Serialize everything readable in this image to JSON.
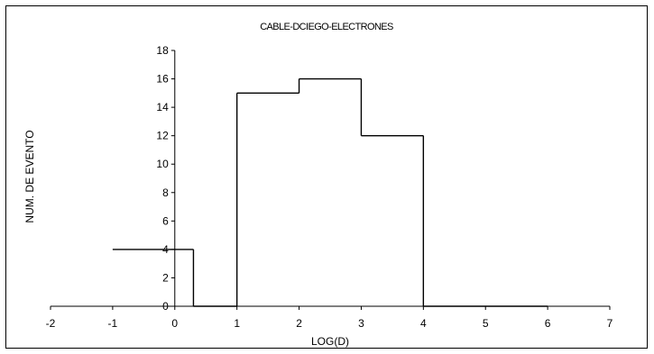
{
  "chart_data": {
    "type": "line",
    "title": "CABLE-DCIEGO-ELECTRONES",
    "xlabel": "LOG(D)",
    "ylabel": "NUM. DE EVENTO",
    "xlim": [
      -2,
      7
    ],
    "ylim": [
      0,
      18
    ],
    "x_ticks": [
      -2,
      -1,
      0,
      1,
      2,
      3,
      4,
      5,
      6,
      7
    ],
    "y_ticks": [
      0,
      2,
      4,
      6,
      8,
      10,
      12,
      14,
      16,
      18
    ],
    "grid": false,
    "legend": "none",
    "series": [
      {
        "x": [
          -1,
          0.3,
          0.3,
          1,
          1,
          2,
          2,
          3,
          3,
          4,
          4,
          6
        ],
        "y": [
          4,
          4,
          0,
          0,
          15,
          15,
          16,
          16,
          12,
          12,
          0,
          0
        ]
      }
    ]
  }
}
